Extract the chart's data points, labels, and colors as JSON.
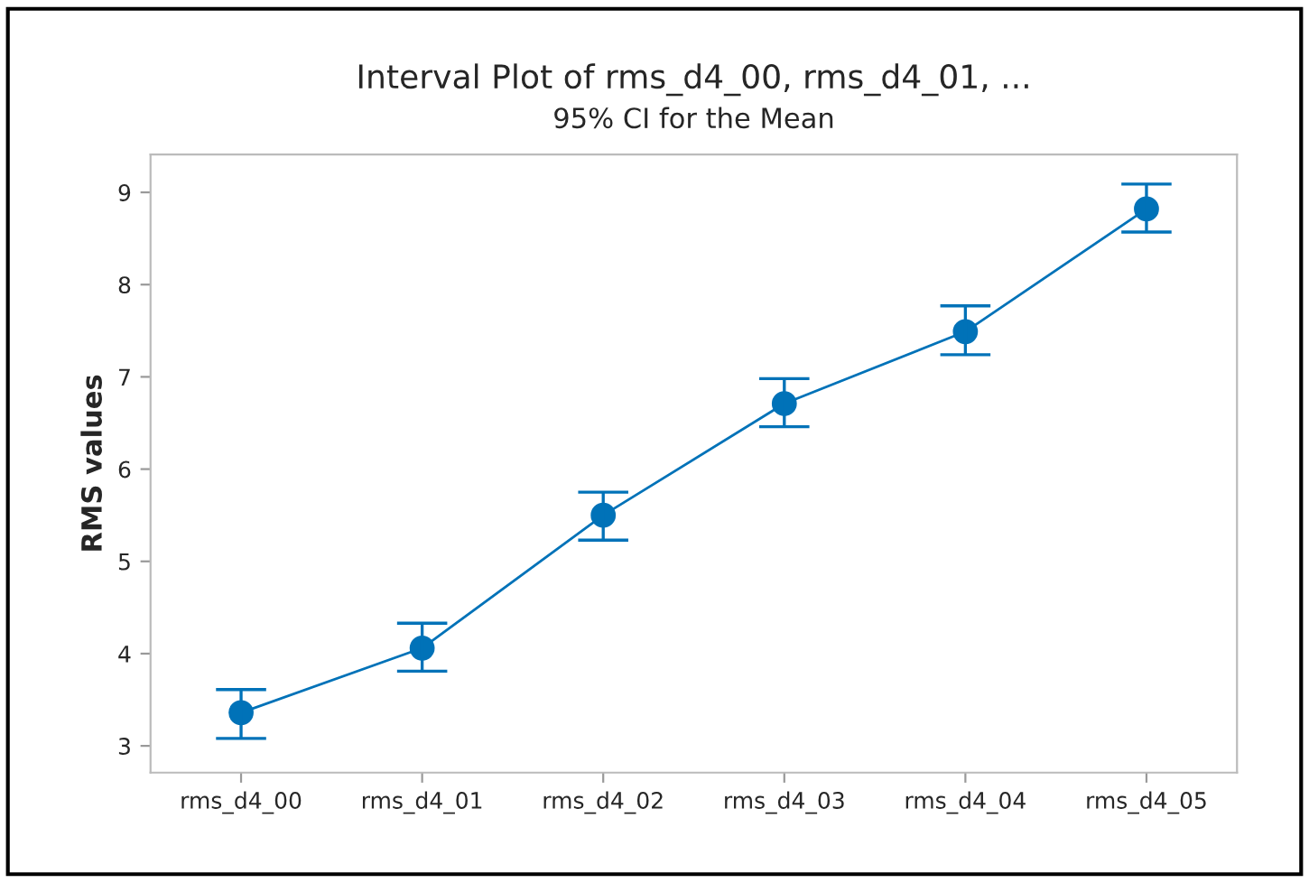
{
  "chart_data": {
    "type": "line",
    "title": "Interval Plot of rms_d4_00, rms_d4_01, ...",
    "subtitle": "95% CI for the Mean",
    "ylabel": "RMS values",
    "categories": [
      "rms_d4_00",
      "rms_d4_01",
      "rms_d4_02",
      "rms_d4_03",
      "rms_d4_04",
      "rms_d4_05"
    ],
    "series": [
      {
        "color": "#0072b8",
        "values": [
          3.36,
          4.06,
          5.5,
          6.71,
          7.49,
          8.82
        ],
        "errors": [
          [
            3.08,
            3.61
          ],
          [
            3.81,
            4.33
          ],
          [
            5.23,
            5.75
          ],
          [
            6.46,
            6.98
          ],
          [
            7.24,
            7.77
          ],
          [
            8.57,
            9.09
          ]
        ]
      }
    ],
    "ylim": [
      2.71,
      9.41
    ],
    "yticks": [
      3,
      4,
      5,
      6,
      7,
      8,
      9
    ],
    "marker": "circle",
    "line_style": "solid",
    "grid": false,
    "legend": false
  }
}
